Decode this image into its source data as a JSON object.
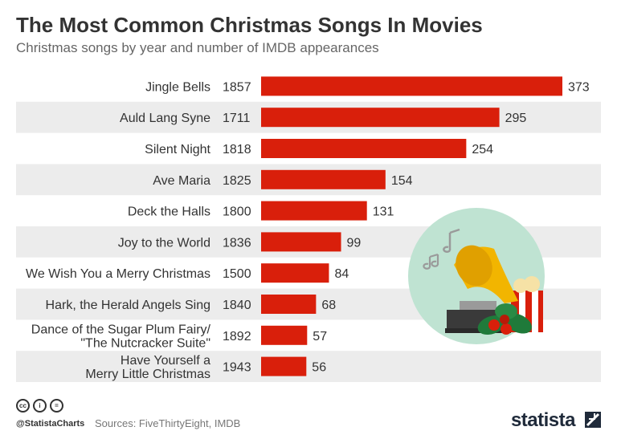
{
  "header": {
    "title": "The Most Common Christmas Songs In Movies",
    "subtitle": "Christmas songs by year and number of IMDB appearances"
  },
  "footer": {
    "handle": "@StatistaCharts",
    "sources": "Sources: FiveThirtyEight, IMDB",
    "brand": "statista",
    "license_icons": [
      "cc-icon",
      "person-icon",
      "equals-icon"
    ]
  },
  "colors": {
    "bar": "#d91f0b",
    "row_stripe": "#ececec",
    "illustration_circle": "#bfe3d2"
  },
  "chart_data": {
    "type": "bar",
    "orientation": "horizontal",
    "categories": [
      [
        "Jingle Bells"
      ],
      [
        "Auld Lang Syne"
      ],
      [
        "Silent Night"
      ],
      [
        "Ave Maria"
      ],
      [
        "Deck the Halls"
      ],
      [
        "Joy to the World"
      ],
      [
        "We Wish You a Merry Christmas"
      ],
      [
        "Hark, the Herald Angels Sing"
      ],
      [
        "Dance of the Sugar Plum Fairy/",
        "\"The Nutcracker Suite\""
      ],
      [
        "Have Yourself a",
        "Merry Little Christmas"
      ]
    ],
    "years": [
      1857,
      1711,
      1818,
      1825,
      1800,
      1836,
      1500,
      1840,
      1892,
      1943
    ],
    "values": [
      373,
      295,
      254,
      154,
      131,
      99,
      84,
      68,
      57,
      56
    ],
    "xlim": [
      0,
      373
    ]
  }
}
